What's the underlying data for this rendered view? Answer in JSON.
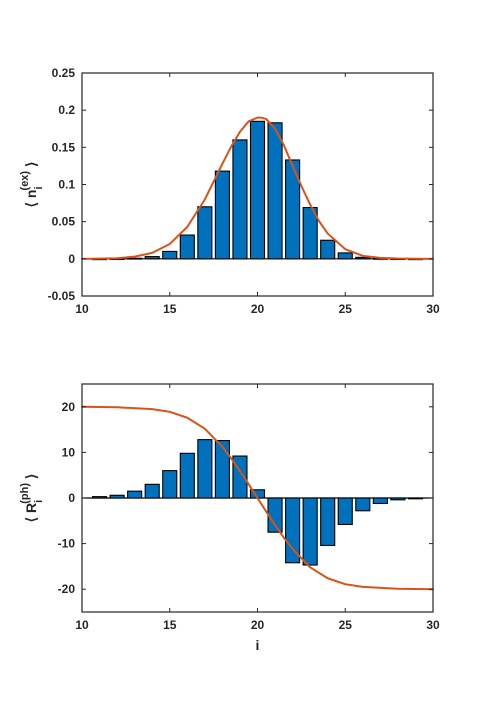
{
  "chart_data": [
    {
      "type": "bar",
      "title": "",
      "xlabel": "",
      "ylabel": {
        "open": "⟨ ",
        "base": "n",
        "sub": "i",
        "sup": "(ex)",
        "close": " ⟩"
      },
      "xlim": [
        10,
        30
      ],
      "ylim": [
        -0.05,
        0.25
      ],
      "xticks": [
        10,
        15,
        20,
        25,
        30
      ],
      "xtick_labels": [
        "10",
        "15",
        "20",
        "25",
        "30"
      ],
      "yticks": [
        -0.05,
        0,
        0.05,
        0.1,
        0.15,
        0.2,
        0.25
      ],
      "ytick_labels": [
        "-0.05",
        "0",
        "0.05",
        "0.1",
        "0.15",
        "0.2",
        "0.25"
      ],
      "grid": false,
      "bar_color": "#0072BD",
      "bars": {
        "x": [
          11,
          12,
          13,
          14,
          15,
          16,
          17,
          18,
          19,
          20,
          21,
          22,
          23,
          24,
          25,
          26,
          27,
          28,
          29
        ],
        "values": [
          0.0,
          0.0003,
          0.0008,
          0.003,
          0.01,
          0.032,
          0.07,
          0.118,
          0.16,
          0.185,
          0.183,
          0.133,
          0.069,
          0.025,
          0.008,
          0.002,
          0.0006,
          0.0002,
          0.0
        ]
      },
      "series": [
        {
          "type": "line",
          "color": "#D95319",
          "x": [
            10,
            11,
            12,
            13,
            14,
            15,
            16,
            17,
            17.5,
            18,
            18.5,
            19,
            19.5,
            20,
            20.2,
            20.5,
            21,
            21.5,
            22,
            22.5,
            23,
            23.5,
            24,
            25,
            26,
            27,
            28,
            29,
            30
          ],
          "values": [
            0.0,
            0.0002,
            0.0008,
            0.003,
            0.008,
            0.02,
            0.043,
            0.08,
            0.104,
            0.128,
            0.151,
            0.171,
            0.185,
            0.19,
            0.19,
            0.188,
            0.175,
            0.153,
            0.125,
            0.098,
            0.073,
            0.051,
            0.034,
            0.013,
            0.004,
            0.0013,
            0.0004,
            0.0001,
            0.0
          ]
        }
      ]
    },
    {
      "type": "bar",
      "title": "",
      "xlabel": "i",
      "ylabel": {
        "open": "⟨ ",
        "base": "R",
        "sub": "i",
        "sup": "(ph)",
        "close": " ⟩"
      },
      "xlim": [
        10,
        30
      ],
      "ylim": [
        -25,
        25
      ],
      "xticks": [
        10,
        15,
        20,
        25,
        30
      ],
      "xtick_labels": [
        "10",
        "15",
        "20",
        "25",
        "30"
      ],
      "yticks": [
        -20,
        -10,
        0,
        10,
        20
      ],
      "ytick_labels": [
        "-20",
        "-10",
        "0",
        "10",
        "20"
      ],
      "grid": false,
      "bar_color": "#0072BD",
      "bars": {
        "x": [
          11,
          12,
          13,
          14,
          15,
          16,
          17,
          18,
          19,
          20,
          21,
          22,
          23,
          24,
          25,
          26,
          27,
          28,
          29
        ],
        "values": [
          0.3,
          0.6,
          1.5,
          3.0,
          6.0,
          9.8,
          12.8,
          12.6,
          9.2,
          1.8,
          -7.5,
          -14.2,
          -14.7,
          -10.4,
          -5.8,
          -2.8,
          -1.2,
          -0.4,
          -0.1
        ]
      },
      "series": [
        {
          "type": "line",
          "color": "#D95319",
          "x": [
            10,
            12,
            14,
            15,
            16,
            17,
            18,
            18.5,
            19,
            19.5,
            20,
            20.5,
            21,
            21.5,
            22,
            23,
            24,
            25,
            26,
            28,
            30
          ],
          "values": [
            20.0,
            19.9,
            19.5,
            18.9,
            17.6,
            15.2,
            11.2,
            8.7,
            5.9,
            3.0,
            0.0,
            -3.0,
            -5.9,
            -8.7,
            -11.2,
            -15.2,
            -17.6,
            -18.9,
            -19.5,
            -19.9,
            -20.0
          ]
        }
      ]
    }
  ]
}
